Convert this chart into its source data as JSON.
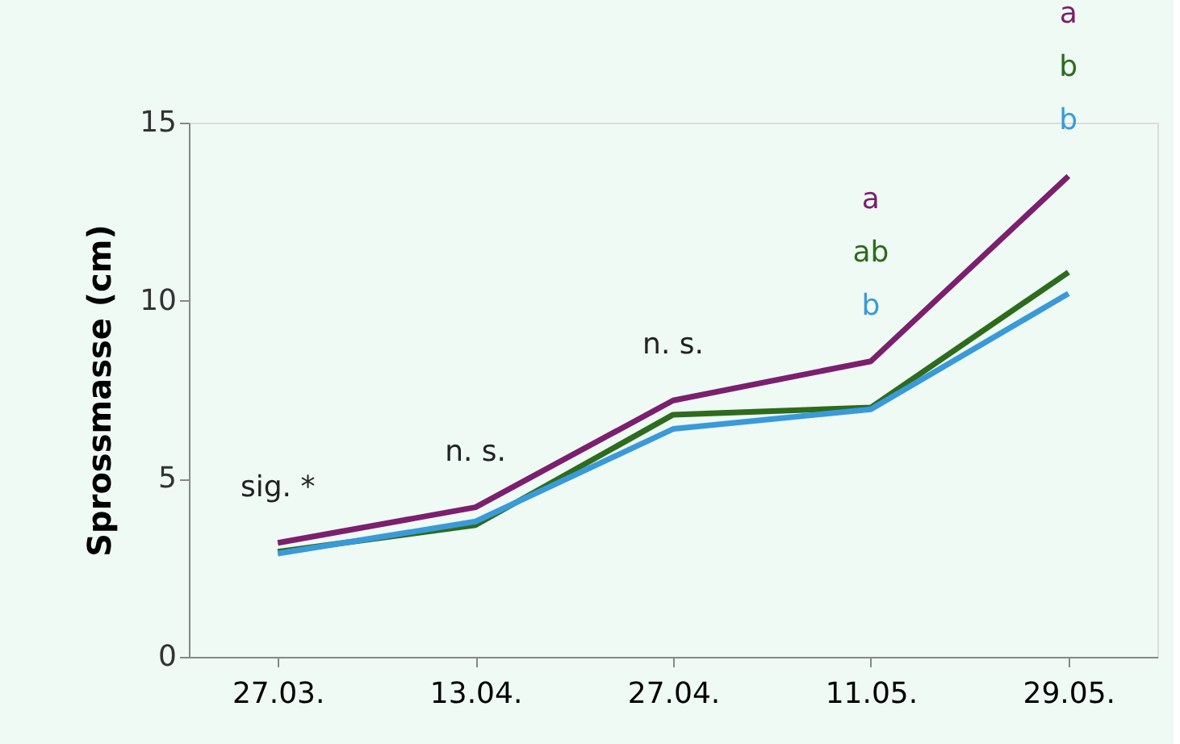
{
  "chart_data": {
    "type": "line",
    "ylabel": "Sprossmasse (cm)",
    "categories": [
      "27.03.",
      "13.04.",
      "27.04.",
      "11.05.",
      "29.05."
    ],
    "series": [
      {
        "color": "#7b1f6e",
        "values": [
          3.2,
          4.2,
          7.2,
          8.3,
          13.5
        ]
      },
      {
        "color": "#2e6b1e",
        "values": [
          2.95,
          3.7,
          6.8,
          7.0,
          10.8
        ]
      },
      {
        "color": "#3a9ad9",
        "values": [
          2.9,
          3.8,
          6.4,
          6.95,
          10.2
        ]
      }
    ],
    "ylim": [
      0,
      15
    ],
    "yticks": [
      0,
      5,
      10,
      15
    ],
    "grid": false,
    "legend": false,
    "marker": "none",
    "line_style": "solid",
    "annotations": [
      "sig. *",
      "n. s.",
      "n. s.",
      "a",
      "ab",
      "b",
      "a",
      "b",
      "b"
    ]
  }
}
